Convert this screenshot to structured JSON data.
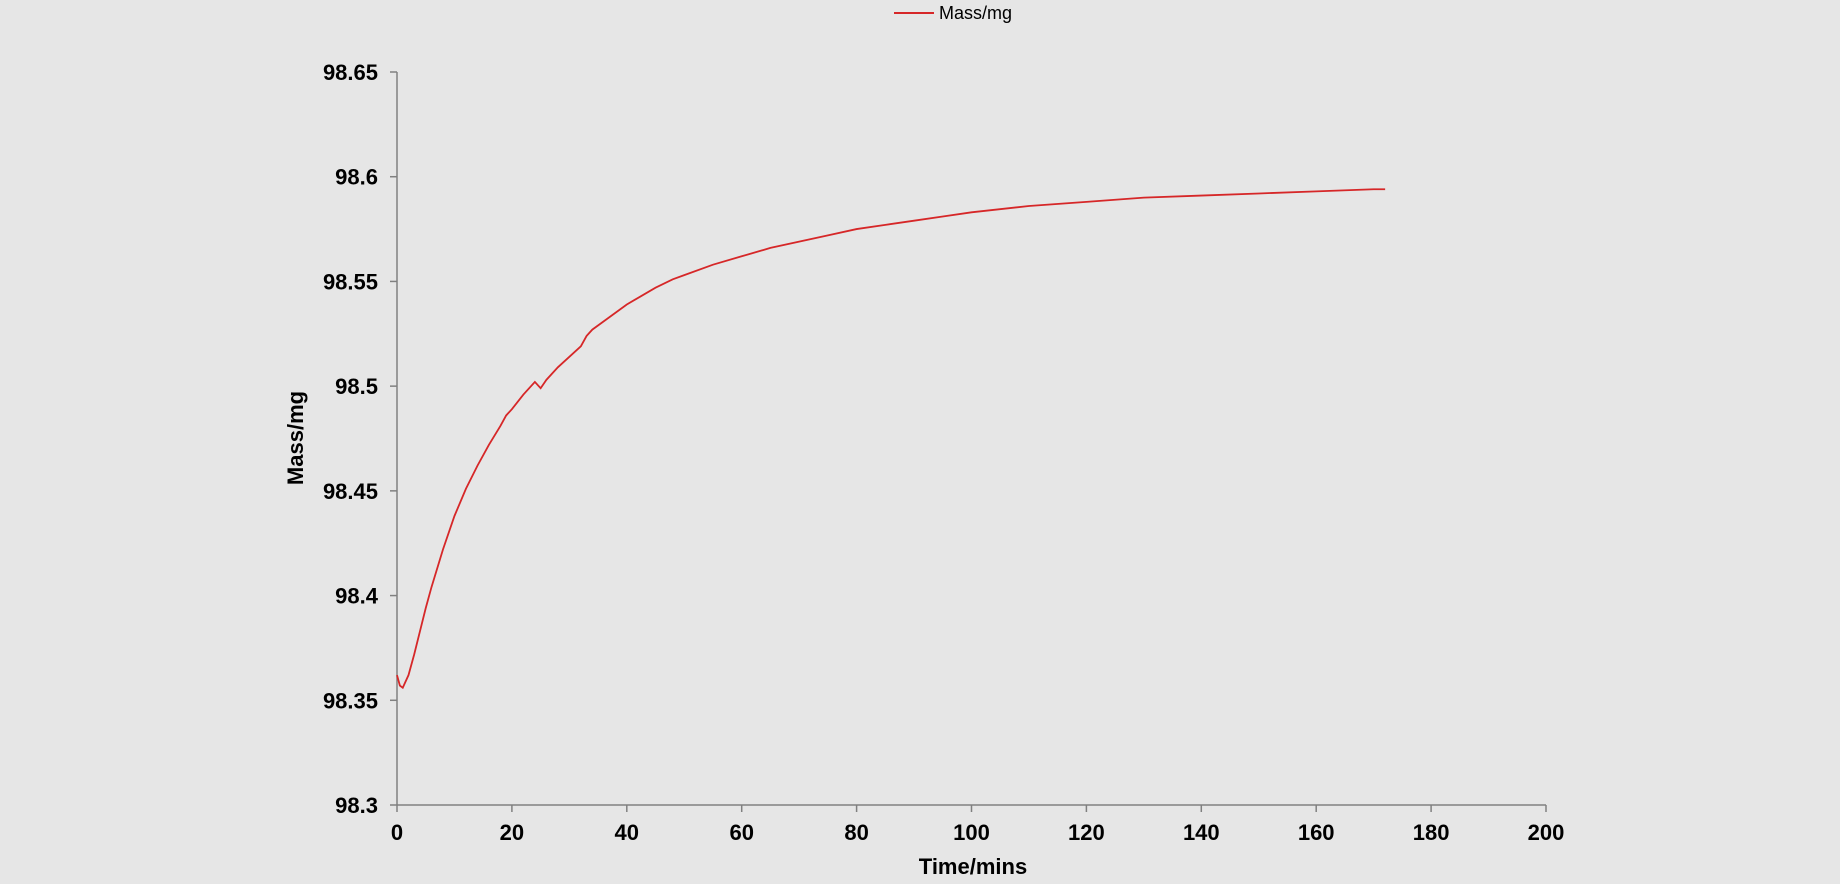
{
  "chart_data": {
    "type": "line",
    "title": "",
    "xlabel": "Time/mins",
    "ylabel": "Mass/mg",
    "xlim": [
      0,
      200
    ],
    "ylim": [
      98.3,
      98.65
    ],
    "x_ticks": [
      "0",
      "20",
      "40",
      "60",
      "80",
      "100",
      "120",
      "140",
      "160",
      "180",
      "200"
    ],
    "y_ticks": [
      "98.3",
      "98.35",
      "98.4",
      "98.45",
      "98.5",
      "98.55",
      "98.6",
      "98.65"
    ],
    "grid": false,
    "legend_position": "top-center",
    "series": [
      {
        "name": "Mass/mg",
        "color": "#d62728",
        "x": [
          0,
          0.5,
          1,
          2,
          3,
          4,
          5,
          6,
          8,
          10,
          12,
          14,
          16,
          18,
          19,
          20,
          22,
          24,
          25,
          26,
          28,
          30,
          32,
          33,
          34,
          36,
          40,
          45,
          48,
          50,
          55,
          60,
          65,
          70,
          75,
          80,
          85,
          90,
          95,
          100,
          110,
          120,
          130,
          140,
          150,
          160,
          170,
          172
        ],
        "y": [
          98.362,
          98.357,
          98.356,
          98.362,
          98.372,
          98.383,
          98.394,
          98.404,
          98.422,
          98.438,
          98.451,
          98.462,
          98.472,
          98.481,
          98.486,
          98.489,
          98.496,
          98.502,
          98.499,
          98.503,
          98.509,
          98.514,
          98.519,
          98.524,
          98.527,
          98.531,
          98.539,
          98.547,
          98.551,
          98.553,
          98.558,
          98.562,
          98.566,
          98.569,
          98.572,
          98.575,
          98.577,
          98.579,
          98.581,
          98.583,
          98.586,
          98.588,
          98.59,
          98.591,
          98.592,
          98.593,
          98.594,
          98.594
        ]
      }
    ]
  }
}
